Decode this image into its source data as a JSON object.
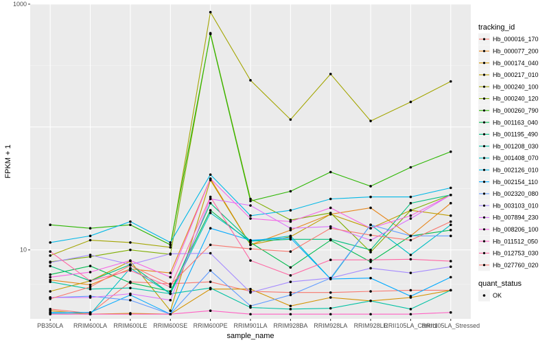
{
  "chart_data": {
    "type": "line",
    "xlabel": "sample_name",
    "ylabel": "FPKM + 1",
    "y_scale": "log10",
    "ylim": [
      2.75,
      1000
    ],
    "y_ticks": [
      {
        "value": 10,
        "label": "10"
      },
      {
        "value": 1000,
        "label": "1000"
      }
    ],
    "categories": [
      "PB350LA",
      "RRIM600LA",
      "RRIM600LE",
      "RRIM600SE",
      "RRIM600PE",
      "RRIM901LA",
      "RRIM928BA",
      "RRIM928LA",
      "RRIM928LE",
      "RRII105LA_Control",
      "RRII105LA_Stressed"
    ],
    "series": [
      {
        "name": "Hb_000016_170",
        "color": "#F8766D",
        "values": [
          3.3,
          3.05,
          5.5,
          5.3,
          5.5,
          4.6,
          4.5,
          4.5,
          4.6,
          4.7,
          4.7
        ]
      },
      {
        "name": "Hb_000077_200",
        "color": "#E7861B",
        "values": [
          5.7,
          5.2,
          7.0,
          6.5,
          38,
          11,
          14.5,
          19.5,
          22,
          13,
          24
        ]
      },
      {
        "name": "Hb_000174_040",
        "color": "#D39200",
        "values": [
          3.2,
          3.0,
          3.05,
          3.0,
          4.8,
          4.8,
          3.5,
          4.1,
          3.85,
          4.1,
          4.7
        ]
      },
      {
        "name": "Hb_000217_010",
        "color": "#BE9C00",
        "values": [
          4.6,
          5.6,
          8.1,
          3.2,
          37,
          11,
          12.8,
          19.5,
          15,
          21,
          19
        ]
      },
      {
        "name": "Hb_000240_100",
        "color": "#A3A500",
        "values": [
          9.0,
          12,
          11.5,
          10.5,
          860,
          240,
          115,
          270,
          112,
          160,
          235
        ]
      },
      {
        "name": "Hb_000240_120",
        "color": "#7FAE00",
        "values": [
          8.0,
          8.8,
          10,
          9.2,
          580,
          26,
          17.5,
          20,
          9.6,
          21,
          28
        ]
      },
      {
        "name": "Hb_000260_790",
        "color": "#2BB600",
        "values": [
          16,
          15,
          16,
          11,
          570,
          25,
          30,
          43,
          33,
          47,
          63
        ]
      },
      {
        "name": "Hb_001163_040",
        "color": "#00BB4E",
        "values": [
          6.3,
          7.4,
          5.4,
          4.6,
          21,
          11.5,
          7.2,
          12,
          8.0,
          13,
          14.5
        ]
      },
      {
        "name": "Hb_001195_490",
        "color": "#00BF7D",
        "values": [
          7.4,
          5.6,
          7.6,
          4.4,
          24,
          11.8,
          12.2,
          12.2,
          10,
          24,
          28
        ]
      },
      {
        "name": "Hb_001208_030",
        "color": "#00C1A3",
        "values": [
          5.5,
          4.8,
          4.9,
          4.4,
          4.9,
          3.4,
          3.3,
          3.35,
          3.85,
          3.3,
          4.7
        ]
      },
      {
        "name": "Hb_001408_070",
        "color": "#00BFC4",
        "values": [
          3.05,
          3.0,
          7.1,
          4.4,
          20,
          11.8,
          13,
          5.8,
          16,
          9.1,
          16
        ]
      },
      {
        "name": "Hb_002126_010",
        "color": "#00B8E7",
        "values": [
          11.5,
          13,
          17,
          11.5,
          41,
          19,
          21,
          26,
          27,
          27,
          32
        ]
      },
      {
        "name": "Hb_002154_110",
        "color": "#00A9FF",
        "values": [
          3.1,
          3.1,
          4.3,
          3.0,
          15,
          12,
          12.5,
          5.8,
          5.9,
          4.2,
          6.0
        ]
      },
      {
        "name": "Hb_002320_080",
        "color": "#619CFF",
        "values": [
          4.1,
          4.2,
          3.9,
          3.0,
          6.8,
          3.5,
          4.3,
          5.9,
          16,
          13,
          13
        ]
      },
      {
        "name": "Hb_003103_010",
        "color": "#A58AFF",
        "values": [
          7.9,
          9.1,
          7.6,
          9.3,
          9.4,
          4.5,
          5.5,
          5.9,
          7.1,
          6.5,
          7.3
        ]
      },
      {
        "name": "Hb_007894_230",
        "color": "#DB72FB",
        "values": [
          4.1,
          4.1,
          4.4,
          3.9,
          26,
          23,
          15,
          15.5,
          12,
          18,
          28
        ]
      },
      {
        "name": "Hb_008206_100",
        "color": "#F564E3",
        "values": [
          6.0,
          6.6,
          8.2,
          6.0,
          38,
          18,
          17,
          22,
          15,
          19,
          28
        ]
      },
      {
        "name": "Hb_011512_050",
        "color": "#FF61C3",
        "values": [
          3.0,
          3.0,
          3.0,
          3.0,
          3.2,
          3.0,
          3.0,
          3.0,
          3.0,
          3.0,
          3.1
        ]
      },
      {
        "name": "Hb_012753_030",
        "color": "#FF67A4",
        "values": [
          9.7,
          5.6,
          6.8,
          5.0,
          27,
          8.2,
          6.2,
          8.3,
          8.3,
          8.4,
          8.1
        ]
      },
      {
        "name": "Hb_027760_020",
        "color": "#F8766D",
        "values": [
          4.0,
          5.0,
          7.5,
          5.2,
          11,
          10.2,
          9.7,
          15,
          13.2,
          12,
          17
        ]
      }
    ],
    "legend_title": "tracking_id",
    "legend_position": "right",
    "grid": true,
    "point_color": "#000000",
    "shape_legend": {
      "title": "quant_status",
      "items": [
        "OK"
      ]
    }
  }
}
